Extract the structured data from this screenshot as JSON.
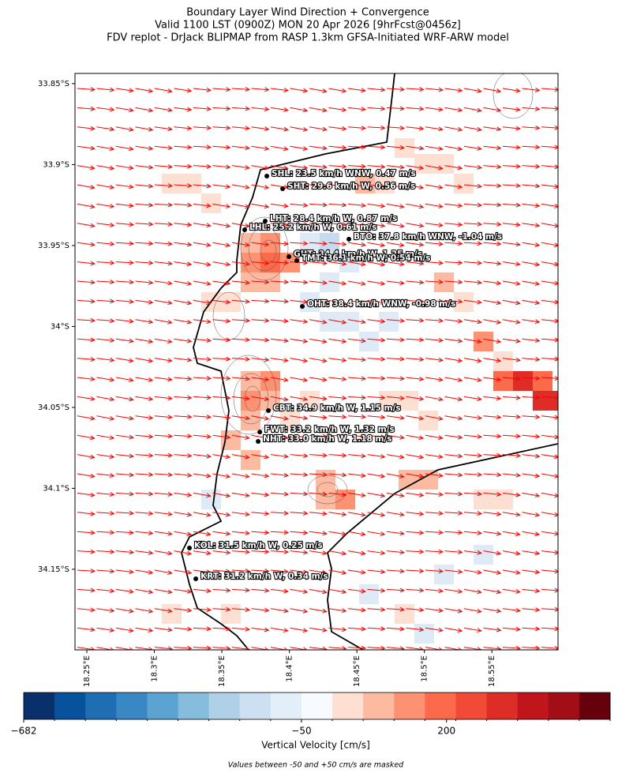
{
  "chart_data": {
    "type": "map",
    "title": [
      "Boundary Layer Wind Direction + Convergence",
      "Valid 1100 LST (0900Z) MON 20 Apr 2026 [9hrFcst@0456z]",
      "FDV replot - DrJack BLIPMAP from RASP 1.3km GFSA-Initiated WRF-ARW model"
    ],
    "xlim": [
      18.2412,
      18.599
    ],
    "ylim": [
      -34.1998,
      -33.8437
    ],
    "xticks": [
      {
        "value": 18.25,
        "label": "18.25°E"
      },
      {
        "value": 18.3,
        "label": "18.3°E"
      },
      {
        "value": 18.35,
        "label": "18.35°E"
      },
      {
        "value": 18.4,
        "label": "18.4°E"
      },
      {
        "value": 18.45,
        "label": "18.45°E"
      },
      {
        "value": 18.5,
        "label": "18.5°E"
      },
      {
        "value": 18.55,
        "label": "18.55°E"
      }
    ],
    "yticks": [
      {
        "value": -33.85,
        "label": "33.85°S"
      },
      {
        "value": -33.9,
        "label": "33.9°S"
      },
      {
        "value": -33.95,
        "label": "33.95°S"
      },
      {
        "value": -34.0,
        "label": "34°S"
      },
      {
        "value": -34.05,
        "label": "34.05°S"
      },
      {
        "value": -34.1,
        "label": "34.1°S"
      },
      {
        "value": -34.15,
        "label": "34.15°S"
      }
    ],
    "stations": [
      {
        "label": "SHL: 23.5 km/h WNW, 0.47 m/s",
        "lon": 18.3833,
        "lat": -33.9071
      },
      {
        "label": "SHT: 29.6 km/h W, 0.56 m/s",
        "lon": 18.395,
        "lat": -33.9149
      },
      {
        "label": "LHT: 28.4 km/h W, 0.87 m/s",
        "lon": 18.3821,
        "lat": -33.9349
      },
      {
        "label": "LHL: 25.2 km/h W, 0.61 m/s",
        "lon": 18.3669,
        "lat": -33.9403
      },
      {
        "label": "BTO: 37.8 km/h WNW, -1.04 m/s",
        "lon": 18.4441,
        "lat": -33.9461
      },
      {
        "label": "GUT: 34.4 km/h W, 1.25 m/s",
        "lon": 18.3997,
        "lat": -33.9569
      },
      {
        "label": "TMT: 36.1 km/h W, 0.54 m/s",
        "lon": 18.4055,
        "lat": -33.9593
      },
      {
        "label": "OHT: 38.4 km/h WNW, -0.98 m/s",
        "lon": 18.4096,
        "lat": -33.9876
      },
      {
        "label": "CBT: 34.9 km/h W, 1.15 m/s",
        "lon": 18.3845,
        "lat": -34.052
      },
      {
        "label": "FWT: 33.2 km/h W, 1.32 m/s",
        "lon": 18.3781,
        "lat": -34.0652
      },
      {
        "label": "NHT: 33.0 km/h W, 1.18 m/s",
        "lon": 18.3769,
        "lat": -34.071
      },
      {
        "label": "KOL: 31.5 km/h W, 0.25 m/s",
        "lon": 18.326,
        "lat": -34.1369
      },
      {
        "label": "KRT: 31.2 km/h W, 0.34 m/s",
        "lon": 18.3307,
        "lat": -34.1559
      }
    ],
    "colorbar": {
      "colors": [
        "#08306b",
        "#08519c",
        "#1f6db3",
        "#3a88c3",
        "#5ba3d0",
        "#86bcdc",
        "#afd1e7",
        "#cce0f1",
        "#e2eef8",
        "#f7fbff",
        "#fee0d2",
        "#fcbba1",
        "#fc9272",
        "#fb6a4a",
        "#f14b37",
        "#de2d26",
        "#c0161b",
        "#a10e15",
        "#67000d"
      ],
      "ticks": [
        {
          "value": -682,
          "label": "−682",
          "boundary": 0
        },
        {
          "value": -50,
          "label": "−50",
          "boundary": 9
        },
        {
          "value": 200,
          "label": "200",
          "boundary": 13.7
        }
      ],
      "label": "Vertical Velocity [cm/s]"
    },
    "note": "Values between -50 and +50 cm/s are masked"
  }
}
